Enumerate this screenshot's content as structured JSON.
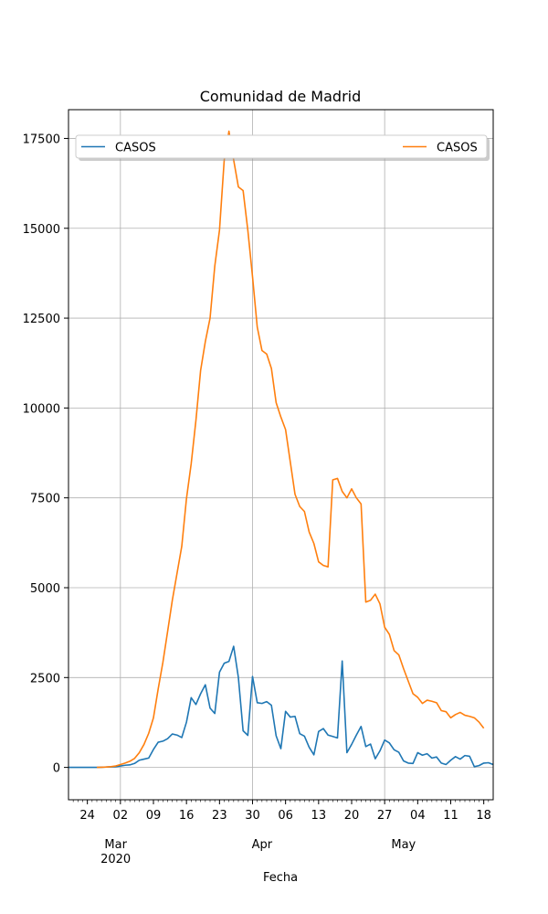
{
  "chart_data": {
    "type": "line",
    "title": "Comunidad de Madrid",
    "xlabel": "Fecha",
    "ylabel": "",
    "xlim": [
      "2020-02-20",
      "2020-05-20"
    ],
    "ylim": [
      -900,
      18300
    ],
    "grid": true,
    "legend": "top",
    "y_ticks": [
      0,
      2500,
      5000,
      7500,
      10000,
      12500,
      15000,
      17500
    ],
    "y_tick_labels": [
      "0",
      "2500",
      "5000",
      "7500",
      "10000",
      "12500",
      "15000",
      "17500"
    ],
    "x_ticks": [
      {
        "date": "2020-02-24",
        "label": "24",
        "major": false
      },
      {
        "date": "2020-03-02",
        "label": "02",
        "major": true
      },
      {
        "date": "2020-03-09",
        "label": "09",
        "major": false
      },
      {
        "date": "2020-03-16",
        "label": "16",
        "major": false
      },
      {
        "date": "2020-03-23",
        "label": "23",
        "major": false
      },
      {
        "date": "2020-03-30",
        "label": "30",
        "major": true
      },
      {
        "date": "2020-04-06",
        "label": "06",
        "major": false
      },
      {
        "date": "2020-04-13",
        "label": "13",
        "major": false
      },
      {
        "date": "2020-04-20",
        "label": "20",
        "major": false
      },
      {
        "date": "2020-04-27",
        "label": "27",
        "major": true
      },
      {
        "date": "2020-05-04",
        "label": "04",
        "major": false
      },
      {
        "date": "2020-05-11",
        "label": "11",
        "major": false
      },
      {
        "date": "2020-05-18",
        "label": "18",
        "major": false
      }
    ],
    "month_labels": [
      {
        "date": "2020-03-01",
        "label": "Mar",
        "year": "2020"
      },
      {
        "date": "2020-04-01",
        "label": "Apr",
        "year": ""
      },
      {
        "date": "2020-05-01",
        "label": "May",
        "year": ""
      }
    ],
    "series": [
      {
        "name": "CASOS",
        "color": "#1f77b4",
        "start": "2020-02-20",
        "values": [
          0,
          0,
          0,
          0,
          0,
          0,
          0,
          5,
          10,
          15,
          20,
          40,
          60,
          70,
          110,
          200,
          230,
          260,
          500,
          700,
          730,
          800,
          930,
          900,
          830,
          1260,
          1940,
          1750,
          2050,
          2300,
          1650,
          1500,
          2650,
          2900,
          2950,
          3370,
          2500,
          1020,
          890,
          2530,
          1800,
          1780,
          1830,
          1730,
          880,
          520,
          1560,
          1400,
          1420,
          940,
          870,
          560,
          350,
          1000,
          1080,
          900,
          860,
          820,
          2960,
          410,
          640,
          900,
          1140,
          580,
          650,
          240,
          460,
          760,
          680,
          490,
          420,
          180,
          120,
          110,
          410,
          340,
          380,
          260,
          290,
          120,
          80,
          200,
          300,
          230,
          330,
          310,
          20,
          50,
          120,
          130,
          80
        ]
      },
      {
        "name": "CASOS",
        "color": "#ff7f0e",
        "start": "2020-02-20",
        "values": [
          null,
          null,
          null,
          null,
          null,
          null,
          0,
          5,
          10,
          20,
          40,
          80,
          120,
          170,
          250,
          410,
          640,
          950,
          1380,
          2180,
          2920,
          3780,
          4650,
          5400,
          6150,
          7480,
          8450,
          9650,
          11050,
          11850,
          12500,
          13950,
          14950,
          16900,
          17700,
          16900,
          16150,
          16050,
          14950,
          13650,
          12250,
          11600,
          11500,
          11100,
          10150,
          9750,
          9400,
          8500,
          7600,
          7260,
          7120,
          6550,
          6230,
          5720,
          5620,
          5580,
          8000,
          8040,
          7680,
          7500,
          7750,
          7500,
          7330,
          4600,
          4650,
          4820,
          4550,
          3900,
          3700,
          3250,
          3130,
          2750,
          2400,
          2050,
          1950,
          1780,
          1870,
          1840,
          1800,
          1580,
          1550,
          1380,
          1470,
          1530,
          1450,
          1420,
          1380,
          1260,
          1090
        ]
      }
    ]
  }
}
